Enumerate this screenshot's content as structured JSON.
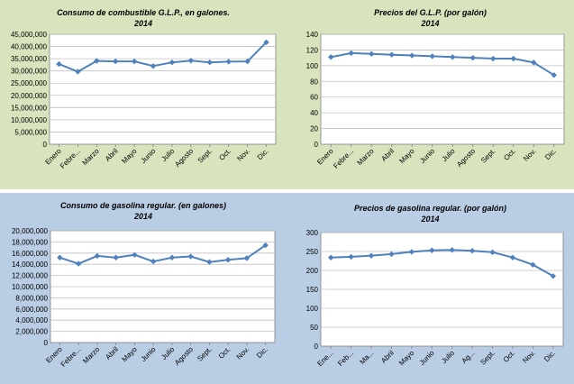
{
  "colors": {
    "green_bg": "#d7e4bd",
    "blue_bg": "#b9cde5",
    "line": "#4f81bd",
    "grid": "#c0c0c0",
    "axis": "#808080"
  },
  "chart_data": [
    {
      "id": "glp-consumo",
      "type": "line",
      "title": "Consumo de combustible G.L.P., en galones.",
      "subtitle": "2014",
      "categories": [
        "Enero",
        "Febre...",
        "Marzo",
        "Abril",
        "Mayo",
        "Junio",
        "Julio",
        "Agosto",
        "Sept.",
        "Oct.",
        "Nov.",
        "Dic."
      ],
      "values": [
        32800000,
        29700000,
        34100000,
        33900000,
        33900000,
        32000000,
        33500000,
        34200000,
        33500000,
        33800000,
        33900000,
        41700000
      ],
      "ylim": [
        0,
        45000000
      ],
      "yticks": [
        "0",
        "5,000,000",
        "10,000,000",
        "15,000,000",
        "20,000,000",
        "25,000,000",
        "30,000,000",
        "35,000,000",
        "40,000,000",
        "45,000,000"
      ],
      "grid": true,
      "legend": "none"
    },
    {
      "id": "glp-precio",
      "type": "line",
      "title": "Precios del G.L.P. (por galón)",
      "subtitle": "2014",
      "categories": [
        "Enero",
        "Febre...",
        "Marzo",
        "Abril",
        "Mayo",
        "Junio",
        "Julio",
        "Agosto",
        "Sept.",
        "Oct.",
        "Nov.",
        "Dic."
      ],
      "values": [
        111,
        116,
        115,
        114,
        113,
        112,
        111,
        110,
        109,
        109,
        104,
        88
      ],
      "ylim": [
        0,
        140
      ],
      "yticks": [
        "0",
        "20",
        "40",
        "60",
        "80",
        "100",
        "120",
        "140"
      ],
      "grid": true,
      "legend": "none"
    },
    {
      "id": "gasolina-consumo",
      "type": "line",
      "title": "Consumo de gasolina regular. (en galones)",
      "subtitle": "2014",
      "categories": [
        "Enero",
        "Febre...",
        "Marzo",
        "Abril",
        "Mayo",
        "Junio",
        "Julio",
        "Agosto",
        "Sept.",
        "Oct.",
        "Nov.",
        "Dic."
      ],
      "values": [
        15200000,
        14100000,
        15500000,
        15200000,
        15700000,
        14500000,
        15200000,
        15400000,
        14400000,
        14800000,
        15100000,
        17400000
      ],
      "ylim": [
        0,
        20000000
      ],
      "yticks": [
        "0",
        "2,000,000",
        "4,000,000",
        "6,000,000",
        "8,000,000",
        "10,000,000",
        "12,000,000",
        "14,000,000",
        "16,000,000",
        "18,000,000",
        "20,000,000"
      ],
      "grid": true,
      "legend": "none"
    },
    {
      "id": "gasolina-precio",
      "type": "line",
      "title": "Precios de gasolina regular. (por galón)",
      "subtitle": "2014",
      "categories": [
        "Ene...",
        "Feb...",
        "Ma...",
        "Abril",
        "Mayo",
        "Junio",
        "Julio",
        "Ag...",
        "Sept.",
        "Oct.",
        "Nov.",
        "Dic."
      ],
      "values": [
        234,
        236,
        239,
        243,
        249,
        253,
        254,
        252,
        248,
        234,
        215,
        185
      ],
      "ylim": [
        0,
        300
      ],
      "yticks": [
        "0",
        "50",
        "100",
        "150",
        "200",
        "250",
        "300"
      ],
      "grid": true,
      "legend": "none"
    }
  ]
}
